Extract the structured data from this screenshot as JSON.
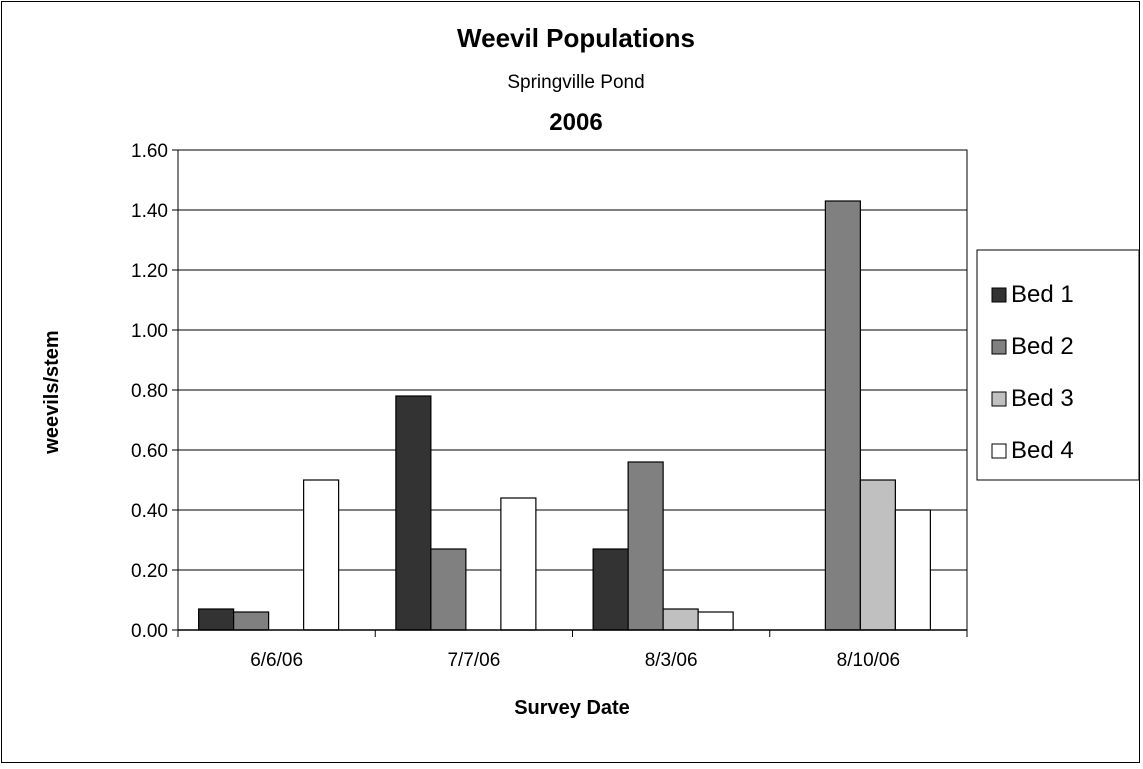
{
  "chart_data": {
    "type": "bar",
    "title": "Weevil Populations",
    "subtitle": "Springville Pond",
    "subtitle2": "2006",
    "xlabel": "Survey Date",
    "ylabel": "weevils/stem",
    "ylim": [
      0,
      1.6
    ],
    "yticks": [
      "0.00",
      "0.20",
      "0.40",
      "0.60",
      "0.80",
      "1.00",
      "1.20",
      "1.40",
      "1.60"
    ],
    "categories": [
      "6/6/06",
      "7/7/06",
      "8/3/06",
      "8/10/06"
    ],
    "grid": true,
    "legend_position": "right",
    "series": [
      {
        "name": "Bed 1",
        "color": "#333333",
        "values": [
          0.07,
          0.78,
          0.27,
          0.0
        ]
      },
      {
        "name": "Bed 2",
        "color": "#808080",
        "values": [
          0.06,
          0.27,
          0.56,
          1.43
        ]
      },
      {
        "name": "Bed 3",
        "color": "#c0c0c0",
        "values": [
          0.0,
          0.0,
          0.07,
          0.5
        ]
      },
      {
        "name": "Bed 4",
        "color": "#ffffff",
        "values": [
          0.5,
          0.44,
          0.06,
          0.4
        ]
      }
    ]
  }
}
